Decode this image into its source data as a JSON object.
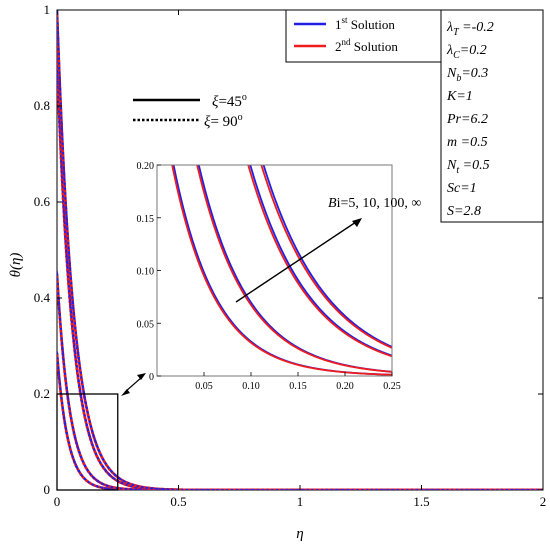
{
  "chart_data": {
    "type": "line",
    "xlabel": "η",
    "ylabel": "θ(η)",
    "xlim": [
      0,
      2
    ],
    "ylim": [
      0,
      1
    ],
    "x_ticks": [
      "0",
      "0.5",
      "1",
      "1.5",
      "2"
    ],
    "y_ticks": [
      "0",
      "0.2",
      "0.4",
      "0.6",
      "0.8",
      "1"
    ],
    "legend_solutions": [
      {
        "name": "1st Solution",
        "base": "1",
        "sup": "st",
        "rest": " Solution",
        "color": "#1f1fe6"
      },
      {
        "name": "2nd Solution",
        "base": "2",
        "sup": "nd",
        "rest": " Solution",
        "color": "#ee1c1c"
      }
    ],
    "legend_xi": [
      {
        "label": "ξ=45°",
        "sym": "ξ",
        "rest": "=45",
        "deg": "o",
        "style": "solid"
      },
      {
        "label": "ξ= 90°",
        "sym": "ξ",
        "rest": "= 90",
        "deg": "o",
        "style": "dotted"
      }
    ],
    "parameters": [
      {
        "sym": "λ",
        "sub": "T",
        "val": " =-0.2"
      },
      {
        "sym": "λ",
        "sub": "C",
        "val": "=0.2"
      },
      {
        "sym": "N",
        "sub": "b",
        "val": "=0.3"
      },
      {
        "sym": "K",
        "sub": "",
        "val": "=1"
      },
      {
        "sym": "Pr",
        "sub": "",
        "val": "=6.2"
      },
      {
        "sym": "m",
        "sub": "",
        "val": " =0.5"
      },
      {
        "sym": "N",
        "sub": "t",
        "val": " =0.5"
      },
      {
        "sym": "Sc",
        "sub": "",
        "val": "=1"
      },
      {
        "sym": "S",
        "sub": "",
        "val": "=2.8"
      }
    ],
    "annotation": "Bi=5, 10, 100, ∞",
    "series": [
      {
        "name": "Bi=5",
        "theta0": 0.285,
        "decay": 22
      },
      {
        "name": "Bi=10",
        "theta0": 0.45,
        "decay": 19
      },
      {
        "name": "Bi=100",
        "theta0": 0.9,
        "decay": 15.5
      },
      {
        "name": "Bi=∞",
        "theta0": 1.0,
        "decay": 14.5
      }
    ],
    "inset": {
      "xlim": [
        0,
        0.25
      ],
      "ylim": [
        0,
        0.2
      ],
      "x_ticks": [
        "0.05",
        "0.10",
        "0.15",
        "0.20",
        "0.25"
      ],
      "y_ticks": [
        "0",
        "0.05",
        "0.10",
        "0.15",
        "0.20"
      ],
      "x_tick_values": [
        0.05,
        0.1,
        0.15,
        0.2,
        0.25
      ],
      "y_tick_values": [
        0,
        0.05,
        0.1,
        0.15,
        0.2
      ]
    },
    "zoom_box": {
      "xlim": [
        0,
        0.25
      ],
      "ylim": [
        0,
        0.2
      ]
    },
    "grid": false
  }
}
